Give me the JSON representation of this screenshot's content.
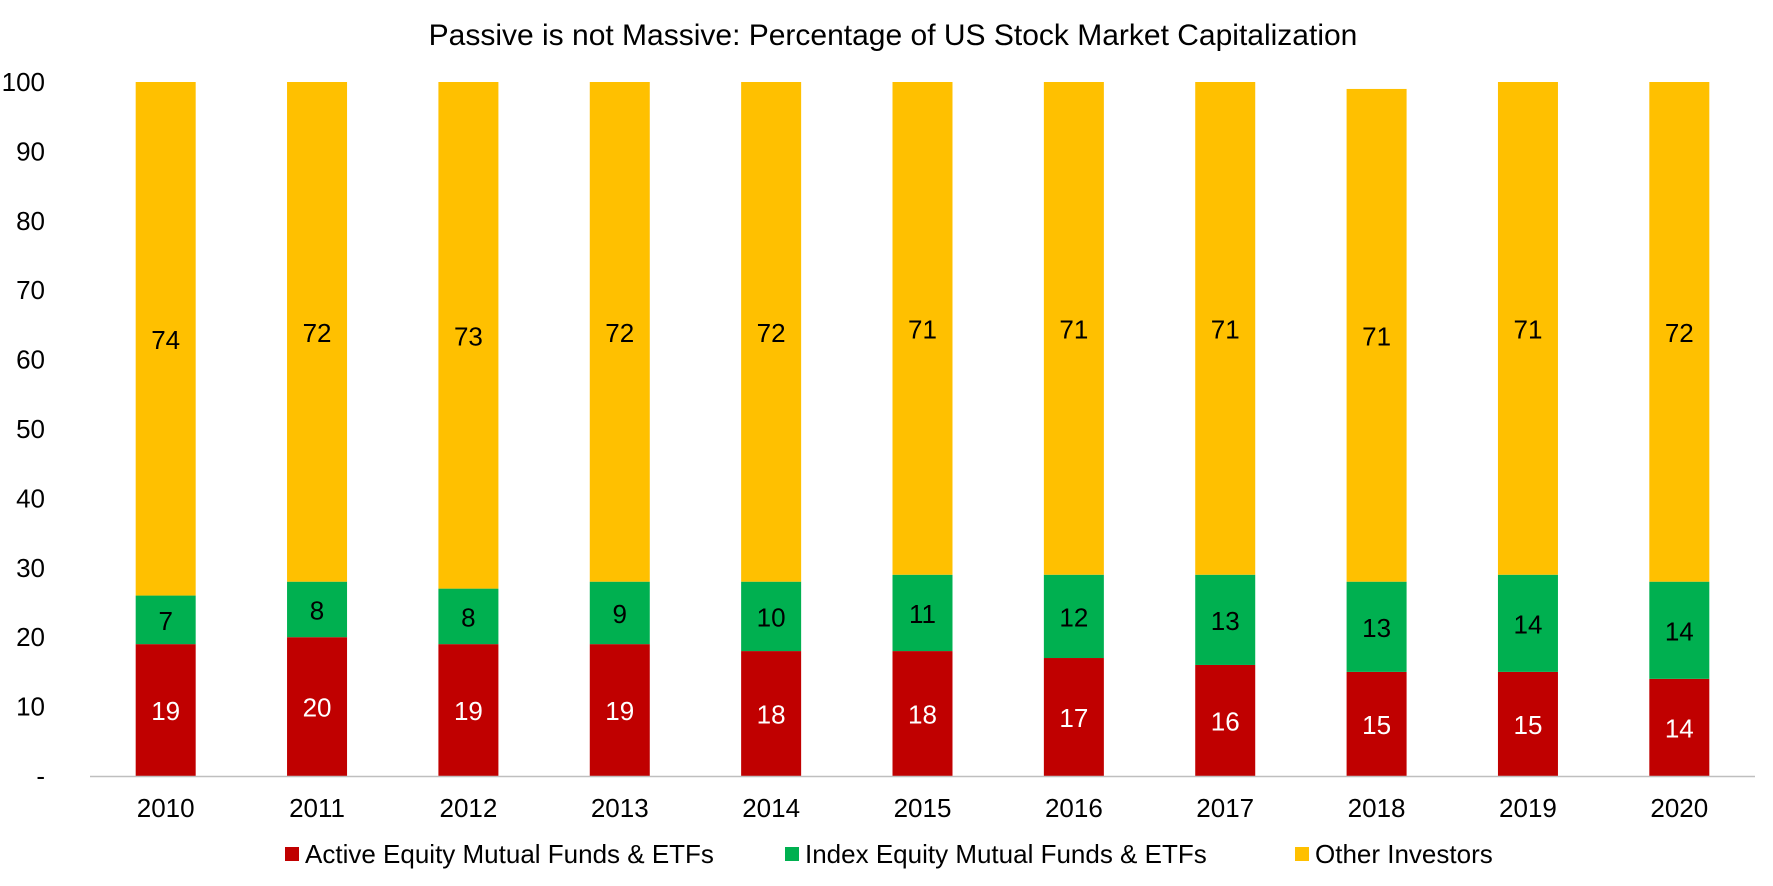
{
  "chart_data": {
    "type": "bar",
    "stacked": true,
    "title": "Passive is not Massive: Percentage of US Stock Market Capitalization",
    "xlabel": "",
    "ylabel": "",
    "ylim": [
      0,
      100
    ],
    "yticks": [
      0,
      10,
      20,
      30,
      40,
      50,
      60,
      70,
      80,
      90,
      100
    ],
    "ytick_labels": [
      "-",
      "10",
      "20",
      "30",
      "40",
      "50",
      "60",
      "70",
      "80",
      "90",
      "100"
    ],
    "grid": false,
    "legend_position": "bottom",
    "categories": [
      "2010",
      "2011",
      "2012",
      "2013",
      "2014",
      "2015",
      "2016",
      "2017",
      "2018",
      "2019",
      "2020"
    ],
    "series": [
      {
        "name": "Active Equity Mutual Funds & ETFs",
        "color": "#c00000",
        "label_color": "#ffffff",
        "values": [
          19,
          20,
          19,
          19,
          18,
          18,
          17,
          16,
          15,
          15,
          14
        ]
      },
      {
        "name": "Index Equity Mutual Funds & ETFs",
        "color": "#00b050",
        "label_color": "#000000",
        "values": [
          7,
          8,
          8,
          9,
          10,
          11,
          12,
          13,
          13,
          14,
          14
        ]
      },
      {
        "name": "Other Investors",
        "color": "#ffc000",
        "label_color": "#000000",
        "values": [
          74,
          72,
          73,
          72,
          72,
          71,
          71,
          71,
          71,
          71,
          72
        ]
      }
    ]
  }
}
